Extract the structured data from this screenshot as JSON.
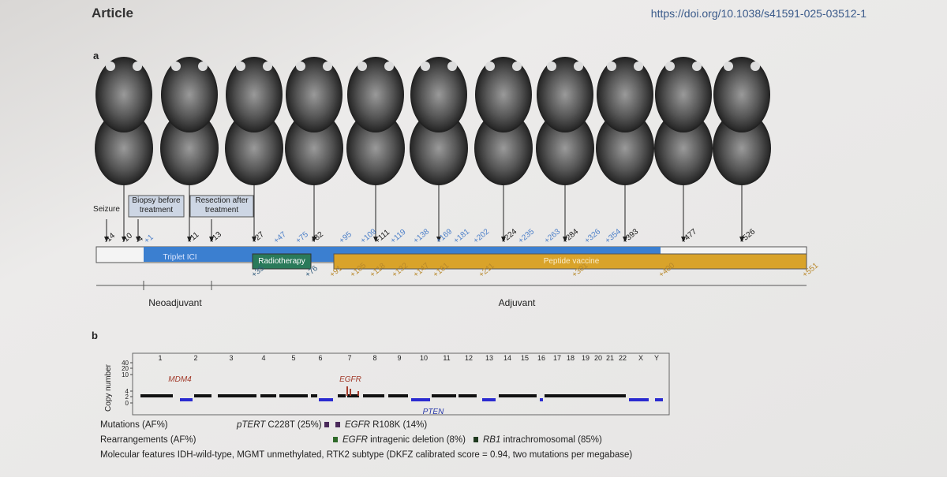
{
  "header": {
    "title": "Article",
    "doi": "https://doi.org/10.1038/s41591-025-03512-1"
  },
  "panel_a": {
    "label": "a",
    "events": [
      "Seizure",
      "Biopsy before treatment",
      "Resection after treatment"
    ],
    "scan_days": [
      "-14",
      "-10",
      "-4",
      "+11",
      "+13",
      "+27",
      "+82",
      "+111",
      "+224",
      "+284",
      "+393",
      "+477",
      "+526"
    ],
    "ici_days": [
      "+1",
      "+47",
      "+75",
      "+95",
      "+109",
      "+119",
      "+138",
      "+169",
      "+181",
      "+202",
      "+235",
      "+263",
      "+326",
      "+354"
    ],
    "radiotherapy_days": [
      "+35",
      "+76"
    ],
    "vaccine_days": [
      "+91",
      "+105",
      "+118",
      "+132",
      "+147",
      "+161",
      "+211",
      "+301",
      "+400",
      "+551"
    ],
    "bars": [
      "Triplet ICI",
      "Radiotherapy",
      "Peptide vaccine"
    ],
    "phases": [
      "Neoadjuvant",
      "Adjuvant"
    ]
  },
  "panel_b": {
    "label": "b",
    "chromosomes": [
      "1",
      "2",
      "3",
      "4",
      "5",
      "6",
      "7",
      "8",
      "9",
      "10",
      "11",
      "12",
      "13",
      "14",
      "15",
      "16",
      "17",
      "18",
      "19",
      "20",
      "21",
      "22",
      "X",
      "Y"
    ],
    "y_axis_label": "Copy number",
    "yticks": [
      40,
      20,
      10,
      4,
      2,
      0
    ],
    "genes": [
      "MDM4",
      "EGFR",
      "PTEN"
    ],
    "rows": {
      "mutations": "Mutations (AF%)",
      "mutation_items": [
        {
          "gene": "pTERT",
          "detail": "C228T (25%)"
        },
        {
          "gene": "EGFR",
          "detail": "R108K (14%)"
        }
      ],
      "rearrangements": "Rearrangements (AF%)",
      "rearrangement_items": [
        {
          "gene": "EGFR",
          "detail": "intragenic deletion (8%)"
        },
        {
          "gene": "RB1",
          "detail": "intrachromosomal (85%)"
        }
      ],
      "molecular": "Molecular features IDH-wild-type, MGMT unmethylated, RTK2 subtype (DKFZ calibrated score = 0.94, two mutations per megabase)"
    }
  }
}
